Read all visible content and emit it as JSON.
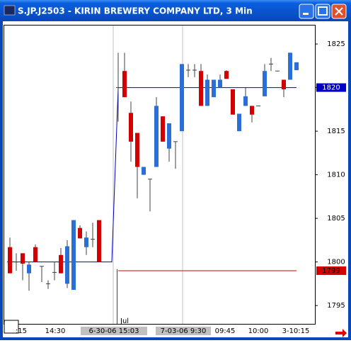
{
  "chart_data": {
    "type": "candlestick",
    "title": "S.JP.J2503 - KIRIN BREWERY COMPANY LTD, 3 Min",
    "ylim": [
      1792.9,
      1827.2
    ],
    "yticks": [
      1795,
      1800,
      1805,
      1810,
      1815,
      1820,
      1825
    ],
    "up_color": "#2a6fd6",
    "down_color": "#d40000",
    "open": [
      1801.7,
      1800,
      1801,
      1798.7,
      1801.7,
      1799.5,
      1797.5,
      1798.8,
      1800.8,
      1797.5,
      1796.8,
      1803.9,
      1801.7,
      1802.6,
      1804.8,
      null,
      null,
      1820,
      1821.9,
      1817.1,
      1814.8,
      1810,
      1809.5,
      1810.9,
      1816.7,
      1813,
      1813.8,
      1815,
      1822,
      1822,
      1821.9,
      1817.9,
      1818.9,
      1820,
      1821.9,
      1819.8,
      1815,
      1817.9,
      1817.9,
      1817.9,
      1819,
      1822.7,
      1821.9,
      1820.9,
      1820.9,
      1822
    ],
    "high": [
      1802.8,
      1801,
      1801,
      1800,
      1802,
      1799.5,
      1797.9,
      1800,
      1801.6,
      1802.5,
      1804.8,
      1804.2,
      1803.5,
      1804.5,
      1804.8,
      null,
      null,
      1824,
      1824,
      1818.4,
      1814.8,
      1810.9,
      1809.5,
      1818.9,
      1816.7,
      1815.9,
      1813.8,
      1822.7,
      1822.7,
      1822.7,
      1822.7,
      1821.5,
      1820.9,
      1821.5,
      1822,
      1819.8,
      1817,
      1820,
      1817.9,
      1817.9,
      1822.7,
      1823.4,
      1821.9,
      1820.9,
      1824,
      1822.9
    ],
    "low": [
      1798.7,
      1799,
      1797.9,
      1796.7,
      1800,
      1797.7,
      1796.9,
      1797.9,
      1798.7,
      1797,
      1796.8,
      1802.7,
      1800.8,
      1801.7,
      1800,
      null,
      null,
      1816.1,
      1818.9,
      1811.5,
      1807.3,
      1810,
      1805.8,
      1810.9,
      1813.8,
      1811.5,
      1810.7,
      1815,
      1821.2,
      1821.2,
      1817.9,
      1817.9,
      1818.9,
      1820,
      1821,
      1816.9,
      1815,
      1817.9,
      1816,
      1817.9,
      1819,
      1821.9,
      1821.9,
      1818.9,
      1820.9,
      1822
    ],
    "close": [
      1798.7,
      1800,
      1799.8,
      1799.7,
      1800,
      1799.5,
      1797.5,
      1798.8,
      1798.7,
      1801.8,
      1804.8,
      1802.7,
      1802.8,
      1802.6,
      1800,
      null,
      null,
      1820,
      1818.9,
      1813.8,
      1810.9,
      1810.9,
      1809.5,
      1817.9,
      1813.8,
      1815.9,
      1813.8,
      1822.7,
      1822,
      1822,
      1817.9,
      1820.9,
      1820.9,
      1820.9,
      1821,
      1816.9,
      1817,
      1819,
      1816.9,
      1817.9,
      1821.9,
      1822.7,
      1821.9,
      1819.8,
      1824,
      1822.9
    ],
    "lines": [
      {
        "color": "#0000c0",
        "marker": 1820,
        "values": [
          1800,
          1800,
          1800,
          1800,
          1800,
          1800,
          1800,
          1800,
          1800,
          1800,
          1800,
          1800,
          1800,
          1800,
          1800,
          1800,
          1800,
          1820,
          1820,
          1820,
          1820,
          1820,
          1820,
          1820,
          1820,
          1820,
          1820,
          1820,
          1820,
          1820,
          1820,
          1820,
          1820,
          1820,
          1820,
          1820,
          1820,
          1820,
          1820,
          1820,
          1820,
          1820,
          1820,
          1820,
          1820,
          1820
        ]
      },
      {
        "color": "#d40000",
        "marker": 1799,
        "values": [
          null,
          null,
          null,
          null,
          null,
          null,
          null,
          null,
          null,
          null,
          null,
          null,
          null,
          null,
          null,
          null,
          null,
          1799,
          1799,
          1799,
          1799,
          1799,
          1799,
          1799,
          1799,
          1799,
          1799,
          1799,
          1799,
          1799,
          1799,
          1799,
          1799,
          1799,
          1799,
          1799,
          1799,
          1799,
          1799,
          1799,
          1799,
          1799,
          1799,
          1799,
          1799,
          1799
        ]
      }
    ],
    "x_labels": [
      ":15",
      "14:30",
      "6-30-06 15:03",
      "7-03-06  9:30",
      "09:45",
      "10:00",
      "3-10:15"
    ],
    "annotation": "Jul"
  }
}
